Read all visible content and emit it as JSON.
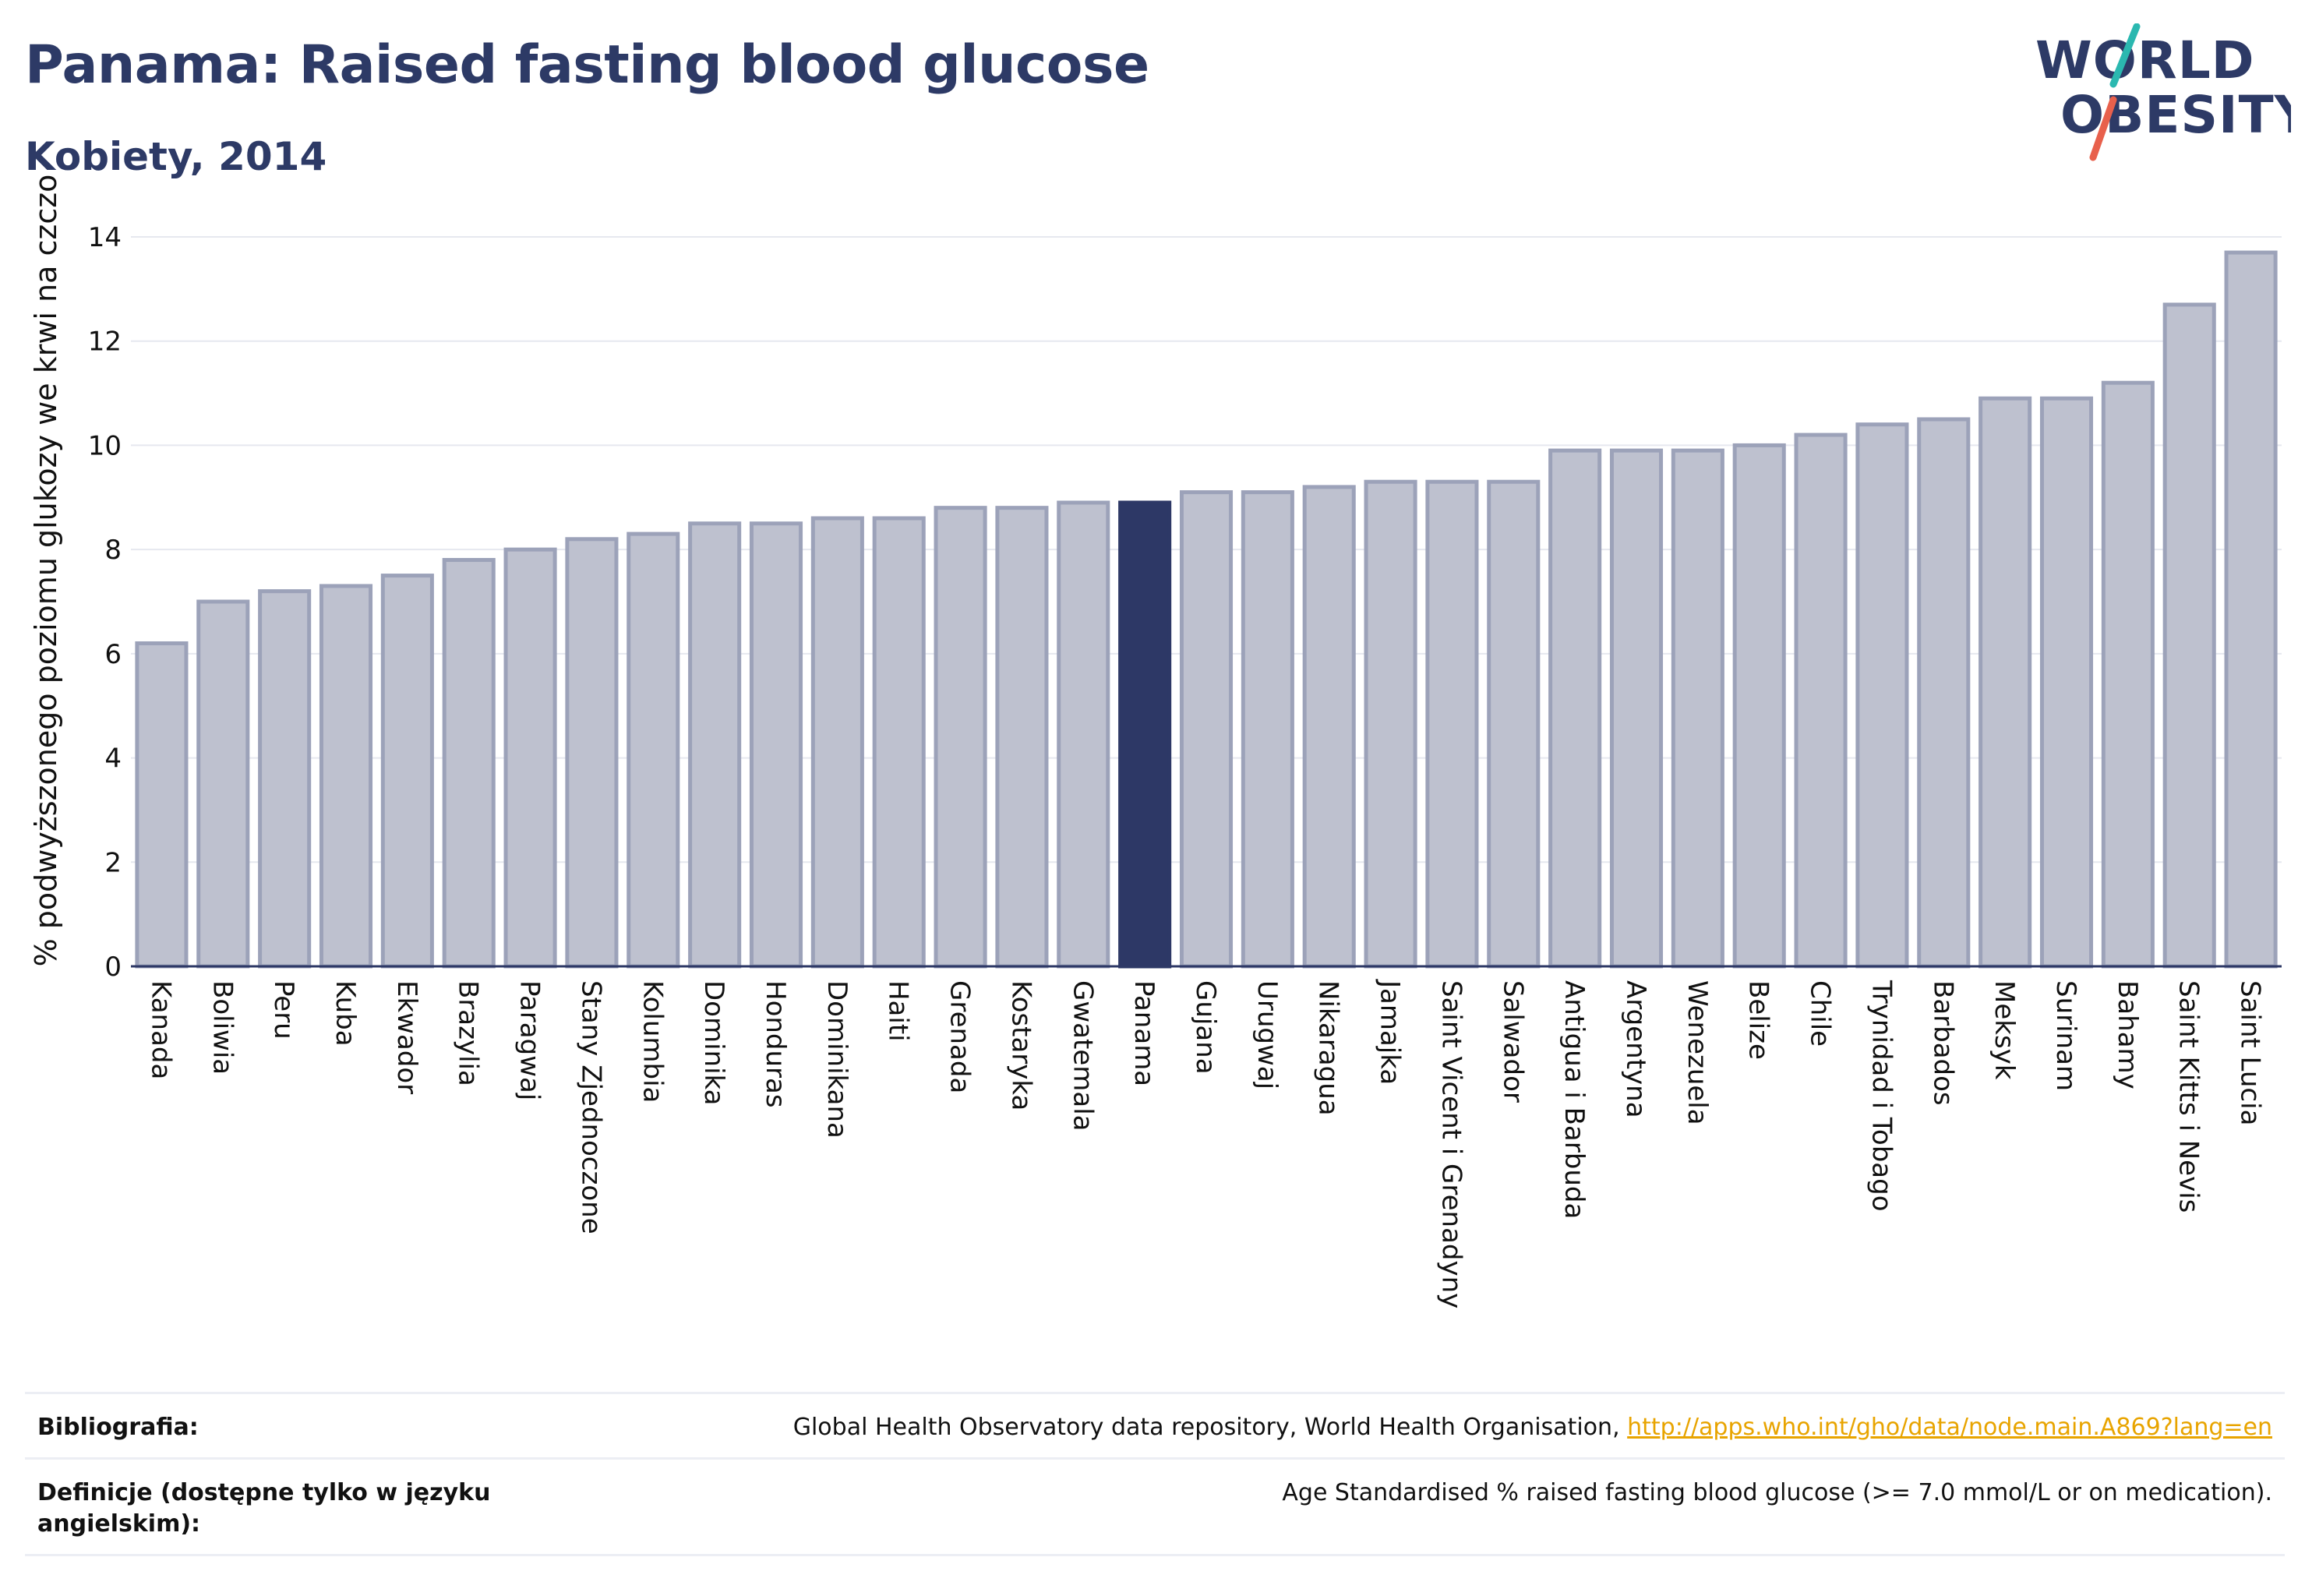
{
  "header": {
    "title": "Panama: Raised fasting blood glucose",
    "subtitle": "Kobiety, 2014"
  },
  "logo": {
    "line1": "WORLD",
    "line2": "OBESITY",
    "colors": {
      "text": "#2d3a66",
      "slash_top": "#2bb8b0",
      "slash_bottom": "#e8604c"
    }
  },
  "colors": {
    "bar_default": "#bec1cf",
    "bar_border": "#9ca2b9",
    "bar_highlight": "#2d3866",
    "grid": "#e6e8ef",
    "axis": "#2d3866",
    "text": "#111111"
  },
  "chart_data": {
    "type": "bar",
    "title": "Panama: Raised fasting blood glucose",
    "subtitle": "Kobiety, 2014",
    "xlabel": "",
    "ylabel": "% podwyższonego poziomu glukozy we krwi na czczo",
    "ylim": [
      0,
      14
    ],
    "yticks": [
      0,
      2,
      4,
      6,
      8,
      10,
      12,
      14
    ],
    "grid": true,
    "highlight": "Panama",
    "categories": [
      "Kanada",
      "Boliwia",
      "Peru",
      "Kuba",
      "Ekwador",
      "Brazylia",
      "Paragwaj",
      "Stany Zjednoczone",
      "Kolumbia",
      "Dominika",
      "Honduras",
      "Dominikana",
      "Haiti",
      "Grenada",
      "Kostaryka",
      "Gwatemala",
      "Panama",
      "Gujana",
      "Urugwaj",
      "Nikaragua",
      "Jamajka",
      "Saint Vicent i Grenadyny",
      "Salwador",
      "Antigua i Barbuda",
      "Argentyna",
      "Wenezuela",
      "Belize",
      "Chile",
      "Trynidad i Tobago",
      "Barbados",
      "Meksyk",
      "Surinam",
      "Bahamy",
      "Saint Kitts i Nevis",
      "Saint Lucia"
    ],
    "values": [
      6.2,
      7.0,
      7.2,
      7.3,
      7.5,
      7.8,
      8.0,
      8.2,
      8.3,
      8.5,
      8.5,
      8.6,
      8.6,
      8.8,
      8.8,
      8.9,
      8.9,
      9.1,
      9.1,
      9.2,
      9.3,
      9.3,
      9.3,
      9.9,
      9.9,
      9.9,
      10.0,
      10.2,
      10.4,
      10.5,
      10.9,
      10.9,
      11.2,
      12.7,
      13.7
    ]
  },
  "footer": {
    "bibliography_label": "Bibliografia:",
    "bibliography_text": "Global Health Observatory data repository, World Health Organisation, ",
    "bibliography_link": "http://apps.who.int/gho/data/node.main.A869?lang=en",
    "definitions_label": "Definicje (dostępne tylko w języku angielskim):",
    "definitions_text": "Age Standardised % raised fasting blood glucose (>= 7.0 mmol/L or on medication)."
  }
}
